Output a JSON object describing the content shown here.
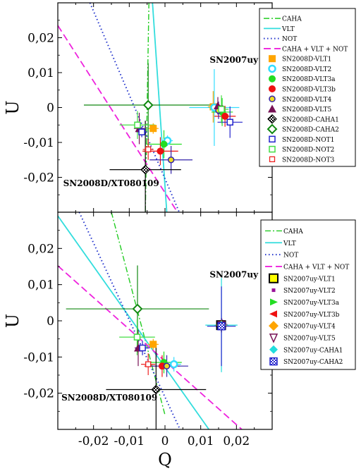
{
  "figure": {
    "xlabel": "Q",
    "xlim": [
      -0.03,
      0.03
    ]
  },
  "chart_data": [
    {
      "type": "scatter",
      "ylabel": "U",
      "xlim": [
        -0.03,
        0.03
      ],
      "ylim": [
        -0.03,
        0.03
      ],
      "yticks": [
        {
          "v": 0.02,
          "label": "0,02"
        },
        {
          "v": 0.01,
          "label": "0,01"
        },
        {
          "v": 0,
          "label": "0"
        },
        {
          "v": -0.01,
          "label": "-0,01"
        },
        {
          "v": -0.02,
          "label": "-0,02"
        }
      ],
      "annotations": [
        {
          "text": "SN2007uy",
          "x": 0.0125,
          "y": 0.0128
        },
        {
          "text": "SN2008D/XT080109",
          "x": -0.0285,
          "y": -0.0225
        }
      ],
      "lines": [
        {
          "name": "CAHA",
          "color": "#22cc22",
          "dash": "8 3 2 3",
          "width": 1.4,
          "x": [
            -0.0045,
            -0.0055
          ],
          "y": [
            0.03,
            -0.03
          ]
        },
        {
          "name": "VLT",
          "color": "#33dddd",
          "dash": "",
          "width": 1.8,
          "x": [
            -0.0035,
            0.0005
          ],
          "y": [
            0.03,
            -0.03
          ]
        },
        {
          "name": "NOT",
          "color": "#2233cc",
          "dash": "1.5 3.5",
          "width": 2,
          "x": [
            -0.021,
            0.004
          ],
          "y": [
            0.03,
            -0.03
          ]
        },
        {
          "name": "CAHA + VLT + NOT",
          "color": "#ee22dd",
          "dash": "10 5",
          "width": 1.8,
          "x": [
            -0.03,
            0.0035
          ],
          "y": [
            0.0235,
            -0.03
          ]
        }
      ],
      "points": [
        {
          "name": "SN2008D-VLT1",
          "x": -0.0033,
          "y": -0.006,
          "marker": "square-filled",
          "color": "#ffa500",
          "xerr": 0.0015,
          "yerr": 0.0015
        },
        {
          "name": "SN2008D-VLT2",
          "x": 0.0007,
          "y": -0.0095,
          "marker": "circle-open",
          "color": "#33ddff",
          "xerr": 0.0015,
          "yerr": 0.0015
        },
        {
          "name": "SN2008D-VLT3a",
          "x": -0.0003,
          "y": -0.0105,
          "marker": "circle-filled",
          "color": "#22dd22",
          "xerr": 0.005,
          "yerr": 0.004
        },
        {
          "name": "SN2008D-VLT3b",
          "x": -0.0013,
          "y": -0.0125,
          "marker": "circle-filled",
          "color": "#ee1111",
          "xerr": 0.005,
          "yerr": 0.004
        },
        {
          "name": "SN2008D-VLT4",
          "x": 0.0017,
          "y": -0.015,
          "marker": "circle-yellow",
          "color": "#3322aa",
          "xerr": 0.006,
          "yerr": 0.004
        },
        {
          "name": "SN2008D-VLT5",
          "x": -0.0072,
          "y": -0.006,
          "marker": "triangle-filled",
          "color": "#771155",
          "xerr": 0.0015,
          "yerr": 0.0045
        },
        {
          "name": "SN2008D-CAHA1",
          "x": -0.0055,
          "y": -0.0178,
          "marker": "diamond-check",
          "color": "#000000",
          "xerr": 0.01,
          "yerr": 0.014
        },
        {
          "name": "SN2008D-CAHA2",
          "x": -0.0047,
          "y": 0.0007,
          "marker": "diamond-open",
          "color": "#118811",
          "xerr": 0.018,
          "yerr": 0.012
        },
        {
          "name": "SN2008D-NOT1",
          "x": -0.0065,
          "y": -0.007,
          "marker": "square-open",
          "color": "#2222cc",
          "xerr": 0.0015,
          "yerr": 0.0015
        },
        {
          "name": "SN2008D-NOT2",
          "x": -0.0077,
          "y": -0.005,
          "marker": "square-open",
          "color": "#44dd44",
          "xerr": 0.005,
          "yerr": 0.004
        },
        {
          "name": "SN2008D-NOT3",
          "x": -0.0047,
          "y": -0.012,
          "marker": "square-open-small",
          "color": "#ee2222",
          "xerr": 0.0015,
          "yerr": 0.003
        },
        {
          "name": "",
          "x": 0.0135,
          "y": 0.0002,
          "marker": "square-filled",
          "color": "#ffa500",
          "xerr": 0.0015,
          "yerr": 0.0045
        },
        {
          "name": "",
          "x": 0.0138,
          "y": 0,
          "marker": "circle-open",
          "color": "#33ddff",
          "xerr": 0.007,
          "yerr": 0.011
        },
        {
          "name": "",
          "x": 0.016,
          "y": -0.0013,
          "marker": "circle-filled",
          "color": "#22dd22",
          "xerr": 0.003,
          "yerr": 0.004
        },
        {
          "name": "",
          "x": 0.0168,
          "y": -0.0025,
          "marker": "circle-filled",
          "color": "#ee1111",
          "xerr": 0.003,
          "yerr": 0.003
        },
        {
          "name": "",
          "x": 0.015,
          "y": -0.0008,
          "marker": "circle-yellow",
          "color": "#3322aa",
          "xerr": 0.0015,
          "yerr": 0.0025
        },
        {
          "name": "",
          "x": 0.0148,
          "y": 0.0005,
          "marker": "triangle-filled",
          "color": "#771155",
          "xerr": 0.0015,
          "yerr": 0.0025
        },
        {
          "name": "",
          "x": 0.0182,
          "y": -0.0042,
          "marker": "square-open",
          "color": "#2222cc",
          "xerr": 0.0035,
          "yerr": 0.0045
        },
        {
          "name": "",
          "x": 0.0158,
          "y": -0.0005,
          "marker": "square-open",
          "color": "#44dd44",
          "xerr": 0.002,
          "yerr": 0.004
        }
      ],
      "legend": {
        "position": "top-right",
        "entries": [
          {
            "label": "CAHA",
            "kind": "line",
            "ref": "CAHA"
          },
          {
            "label": "VLT",
            "kind": "line",
            "ref": "VLT"
          },
          {
            "label": "NOT",
            "kind": "line",
            "ref": "NOT"
          },
          {
            "label": "CAHA + VLT + NOT",
            "kind": "line",
            "ref": "CAHA + VLT + NOT"
          },
          {
            "label": "SN2008D-VLT1",
            "kind": "marker",
            "marker": "square-filled",
            "color": "#ffa500"
          },
          {
            "label": "SN2008D-VLT2",
            "kind": "marker",
            "marker": "circle-open",
            "color": "#33ddff"
          },
          {
            "label": "SN2008D-VLT3a",
            "kind": "marker",
            "marker": "circle-filled",
            "color": "#22dd22"
          },
          {
            "label": "SN2008D-VLT3b",
            "kind": "marker",
            "marker": "circle-filled",
            "color": "#ee1111"
          },
          {
            "label": "SN2008D-VLT4",
            "kind": "marker",
            "marker": "circle-yellow",
            "color": "#3322aa"
          },
          {
            "label": "SN2008D-VLT5",
            "kind": "marker",
            "marker": "triangle-filled",
            "color": "#771155"
          },
          {
            "label": "SN2008D-CAHA1",
            "kind": "marker",
            "marker": "diamond-check",
            "color": "#000000"
          },
          {
            "label": "SN2008D-CAHA2",
            "kind": "marker",
            "marker": "diamond-open",
            "color": "#118811"
          },
          {
            "label": "SN2008D-NOT1",
            "kind": "marker",
            "marker": "square-open",
            "color": "#2222cc"
          },
          {
            "label": "SN2008D-NOT2",
            "kind": "marker",
            "marker": "square-open",
            "color": "#44dd44"
          },
          {
            "label": "SN2008D-NOT3",
            "kind": "marker",
            "marker": "square-open-small",
            "color": "#ee2222"
          }
        ]
      }
    },
    {
      "type": "scatter",
      "ylabel": "U",
      "xlim": [
        -0.03,
        0.03
      ],
      "ylim": [
        -0.03,
        0.03
      ],
      "xticks": [
        {
          "v": -0.02,
          "label": "-0,02"
        },
        {
          "v": -0.01,
          "label": "-0,01"
        },
        {
          "v": 0,
          "label": "0"
        },
        {
          "v": 0.01,
          "label": "0,01"
        },
        {
          "v": 0.02,
          "label": "0,02"
        }
      ],
      "yticks": [
        {
          "v": 0.02,
          "label": "0,02"
        },
        {
          "v": 0.01,
          "label": "0,01"
        },
        {
          "v": 0,
          "label": "0"
        },
        {
          "v": -0.01,
          "label": "-0,01"
        },
        {
          "v": -0.02,
          "label": "-0,02"
        }
      ],
      "annotations": [
        {
          "text": "SN2007uy",
          "x": 0.0125,
          "y": 0.012
        },
        {
          "text": "SN2008D/XT080109",
          "x": -0.029,
          "y": -0.022
        }
      ],
      "lines": [
        {
          "name": "CAHA",
          "color": "#22cc22",
          "dash": "8 3 2 3",
          "width": 1.4,
          "x": [
            -0.015,
            0.0
          ],
          "y": [
            0.03,
            -0.026
          ]
        },
        {
          "name": "VLT",
          "color": "#33dddd",
          "dash": "",
          "width": 1.8,
          "x": [
            -0.03,
            0.0123
          ],
          "y": [
            0.029,
            -0.03
          ]
        },
        {
          "name": "NOT",
          "color": "#2233cc",
          "dash": "1.5 3.5",
          "width": 2,
          "x": [
            -0.024,
            0.0042
          ],
          "y": [
            0.03,
            -0.03
          ]
        },
        {
          "name": "CAHA + VLT + NOT",
          "color": "#ee22dd",
          "dash": "10 5",
          "width": 1.8,
          "x": [
            -0.03,
            0.0215
          ],
          "y": [
            0.0152,
            -0.03
          ]
        }
      ],
      "points": [
        {
          "name": "",
          "x": -0.0033,
          "y": -0.0065,
          "marker": "square-filled",
          "color": "#ffa500",
          "xerr": 0.0015,
          "yerr": 0.0015
        },
        {
          "name": "",
          "x": 0.0025,
          "y": -0.012,
          "marker": "circle-open",
          "color": "#33ddff",
          "xerr": 0.002,
          "yerr": 0.002
        },
        {
          "name": "",
          "x": -0.0003,
          "y": -0.0115,
          "marker": "circle-filled",
          "color": "#22dd22",
          "xerr": 0.005,
          "yerr": 0.003
        },
        {
          "name": "",
          "x": -0.0008,
          "y": -0.0125,
          "marker": "circle-filled",
          "color": "#ee1111",
          "xerr": 0.005,
          "yerr": 0.003
        },
        {
          "name": "",
          "x": 0.0005,
          "y": -0.0125,
          "marker": "circle-yellow",
          "color": "#3322aa",
          "xerr": 0.006,
          "yerr": 0.003
        },
        {
          "name": "",
          "x": -0.0075,
          "y": -0.0075,
          "marker": "triangle-filled",
          "color": "#771155",
          "xerr": 0.001,
          "yerr": 0.005
        },
        {
          "name": "",
          "x": -0.0025,
          "y": -0.019,
          "marker": "diamond-check",
          "color": "#000000",
          "xerr": 0.014,
          "yerr": 0.013
        },
        {
          "name": "",
          "x": -0.0077,
          "y": 0.0033,
          "marker": "diamond-open",
          "color": "#118811",
          "xerr": 0.02,
          "yerr": 0.012
        },
        {
          "name": "",
          "x": -0.0063,
          "y": -0.0075,
          "marker": "square-open",
          "color": "#2222cc",
          "xerr": 0.002,
          "yerr": 0.002
        },
        {
          "name": "",
          "x": -0.0078,
          "y": -0.0045,
          "marker": "square-open",
          "color": "#44dd44",
          "xerr": 0.005,
          "yerr": 0.005
        },
        {
          "name": "",
          "x": -0.0047,
          "y": -0.012,
          "marker": "square-open-small",
          "color": "#ee2222",
          "xerr": 0.002,
          "yerr": 0.003
        },
        {
          "name": "SN2007uy-VLT1",
          "x": 0.0157,
          "y": -0.0012,
          "marker": "square-yellow",
          "color": "#ffff00",
          "xerr": 0.0015,
          "yerr": 0.0015
        },
        {
          "name": "SN2007uy-VLT2",
          "x": 0.016,
          "y": -0.001,
          "marker": "square-small",
          "color": "#991199",
          "xerr": 0.0015,
          "yerr": 0.0015
        },
        {
          "name": "SN2007uy-VLT3a",
          "x": 0.0158,
          "y": -0.0012,
          "marker": "tri-right",
          "color": "#22dd22",
          "xerr": 0.002,
          "yerr": 0.002
        },
        {
          "name": "SN2007uy-VLT3b",
          "x": 0.0158,
          "y": -0.0012,
          "marker": "tri-left",
          "color": "#ee1111",
          "xerr": 0.002,
          "yerr": 0.002
        },
        {
          "name": "SN2007uy-VLT4",
          "x": 0.0158,
          "y": -0.0012,
          "marker": "diamond-orange",
          "color": "#ffa500",
          "xerr": 0.002,
          "yerr": 0.002
        },
        {
          "name": "SN2007uy-VLT5",
          "x": 0.0158,
          "y": -0.0012,
          "marker": "tri-down-open",
          "color": "#771155",
          "xerr": 0.002,
          "yerr": 0.002
        },
        {
          "name": "SN2007uy-CAHA1",
          "x": 0.0158,
          "y": -0.0012,
          "marker": "diamond-cyan",
          "color": "#22dddd",
          "xerr": 0.0045,
          "yerr": 0.013
        },
        {
          "name": "SN2007uy-CAHA2",
          "x": 0.0158,
          "y": -0.0015,
          "marker": "square-check",
          "color": "#2222cc",
          "xerr": 0.004,
          "yerr": 0.011
        }
      ],
      "legend": {
        "position": "top-right",
        "entries": [
          {
            "label": "CAHA",
            "kind": "line",
            "ref": "CAHA"
          },
          {
            "label": "VLT",
            "kind": "line",
            "ref": "VLT"
          },
          {
            "label": "NOT",
            "kind": "line",
            "ref": "NOT"
          },
          {
            "label": "CAHA + VLT + NOT",
            "kind": "line",
            "ref": "CAHA + VLT + NOT"
          },
          {
            "label": "SN2007uy-VLT1",
            "kind": "marker",
            "marker": "square-yellow",
            "color": "#ffff00"
          },
          {
            "label": "SN2007uy-VLT2",
            "kind": "marker",
            "marker": "square-small",
            "color": "#991199"
          },
          {
            "label": "SN2007uy-VLT3a",
            "kind": "marker",
            "marker": "tri-right",
            "color": "#22dd22"
          },
          {
            "label": "SN2007uy-VLT3b",
            "kind": "marker",
            "marker": "tri-left",
            "color": "#ee1111"
          },
          {
            "label": "SN2007uy-VLT4",
            "kind": "marker",
            "marker": "diamond-orange",
            "color": "#ffa500"
          },
          {
            "label": "SN2007uy-VLT5",
            "kind": "marker",
            "marker": "tri-down-open",
            "color": "#771155"
          },
          {
            "label": "SN2007uy-CAHA1",
            "kind": "marker",
            "marker": "diamond-cyan",
            "color": "#22dddd"
          },
          {
            "label": "SN2007uy-CAHA2",
            "kind": "marker",
            "marker": "square-check",
            "color": "#2222cc"
          }
        ]
      }
    }
  ]
}
